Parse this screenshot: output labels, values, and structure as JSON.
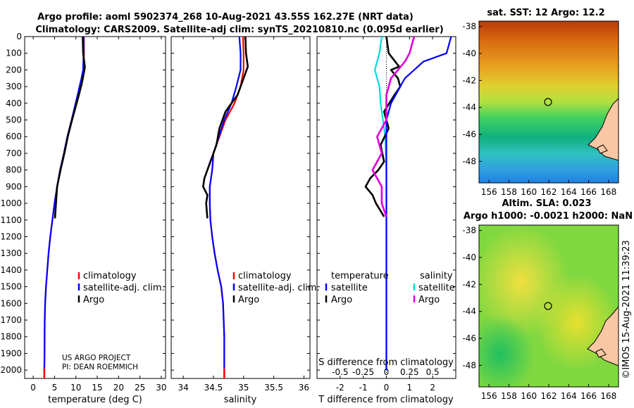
{
  "header": {
    "title_line1": "Argo profile: aoml 5902374_268 10-Aug-2021 43.55S 162.27E (NRT data)",
    "title_line2": "Climatology: CARS2009. Satellite-adj clim: synTS_20210810.nc (0.095d earlier)",
    "credit_project": "US ARGO PROJECT",
    "credit_pi": "PI: DEAN ROEMMICH",
    "timestamp": "©IMOS 15-Aug-2021 11:39:23"
  },
  "colors": {
    "climatology": "#ff0000",
    "satellite_adj": "#0000ff",
    "argo": "#000000",
    "temp_satellite": "#00dddd",
    "sal_argo": "#dd00dd",
    "land": "#f9c7a3"
  },
  "chart_data": [
    {
      "type": "line",
      "id": "temperature",
      "xlabel": "temperature (deg C)",
      "xlim": [
        -2,
        31
      ],
      "ylim": [
        2050,
        0
      ],
      "yticks": [
        0,
        100,
        200,
        300,
        400,
        500,
        600,
        700,
        800,
        900,
        1000,
        1100,
        1200,
        1300,
        1400,
        1500,
        1600,
        1700,
        1800,
        1900,
        2000
      ],
      "xticks": [
        0,
        5,
        10,
        15,
        20,
        25,
        30
      ],
      "legend": [
        "climatology",
        "satellite-adj. clim.",
        "Argo"
      ],
      "series": [
        {
          "name": "climatology",
          "color": "#ff0000",
          "x": [
            11.9,
            11.9,
            11.8,
            11.4,
            10.5,
            9.0,
            8.0,
            7.2,
            6.3,
            5.6,
            5.0,
            4.5,
            4.0,
            3.6,
            3.3,
            3.0,
            2.8,
            2.7,
            2.65,
            2.6
          ],
          "y": [
            0,
            100,
            200,
            250,
            350,
            500,
            600,
            700,
            800,
            900,
            1000,
            1100,
            1200,
            1300,
            1400,
            1500,
            1600,
            1700,
            1900,
            2050
          ]
        },
        {
          "name": "satellite-adj. clim.",
          "color": "#0000ff",
          "x": [
            11.8,
            11.8,
            11.7,
            11.3,
            10.4,
            9.0,
            8.0,
            7.2,
            6.3,
            5.6,
            5.0,
            4.5,
            4.0,
            3.6,
            3.3,
            3.0,
            2.8,
            2.7,
            2.65,
            2.6
          ],
          "y": [
            0,
            100,
            200,
            250,
            350,
            500,
            600,
            700,
            800,
            900,
            1000,
            1100,
            1200,
            1300,
            1400,
            1500,
            1600,
            1700,
            1900,
            2000
          ]
        },
        {
          "name": "Argo",
          "color": "#000000",
          "x": [
            11.6,
            11.7,
            12.1,
            12.0,
            11.4,
            10.6,
            9.1,
            8.1,
            7.3,
            6.4,
            5.6,
            5.1
          ],
          "y": [
            0,
            100,
            180,
            200,
            280,
            360,
            500,
            600,
            700,
            800,
            900,
            1090
          ]
        }
      ]
    },
    {
      "type": "line",
      "id": "salinity",
      "xlabel": "salinity",
      "xlim": [
        33.8,
        36.1
      ],
      "ylim": [
        2050,
        0
      ],
      "xticks": [
        34,
        34.5,
        35,
        35.5,
        36
      ],
      "legend": [
        "climatology",
        "satellite-adj. clim.",
        "Argo"
      ],
      "series": [
        {
          "name": "climatology",
          "color": "#ff0000",
          "x": [
            34.99,
            35.0,
            35.0,
            34.95,
            34.85,
            34.7,
            34.6,
            34.5,
            34.48,
            34.44,
            34.44,
            34.45,
            34.48,
            34.52,
            34.57,
            34.63,
            34.66,
            34.68,
            34.68
          ],
          "y": [
            0,
            100,
            200,
            300,
            400,
            500,
            600,
            700,
            800,
            900,
            1000,
            1100,
            1200,
            1300,
            1400,
            1500,
            1600,
            1800,
            2050
          ]
        },
        {
          "name": "satellite-adj. clim.",
          "color": "#0000ff",
          "x": [
            34.93,
            34.95,
            34.95,
            34.88,
            34.8,
            34.68,
            34.59,
            34.5,
            34.48,
            34.44,
            34.44,
            34.45,
            34.48,
            34.52,
            34.57,
            34.63,
            34.66,
            34.68,
            34.68
          ],
          "y": [
            0,
            100,
            200,
            300,
            400,
            500,
            600,
            700,
            800,
            900,
            1000,
            1100,
            1200,
            1300,
            1400,
            1500,
            1600,
            1800,
            2000
          ]
        },
        {
          "name": "Argo",
          "color": "#000000",
          "x": [
            35.03,
            35.04,
            35.07,
            35.0,
            34.9,
            34.7,
            34.6,
            34.55,
            34.45,
            34.35,
            34.33,
            34.4,
            34.38,
            34.4
          ],
          "y": [
            0,
            100,
            180,
            250,
            350,
            450,
            550,
            650,
            750,
            850,
            900,
            950,
            1000,
            1090
          ]
        }
      ]
    },
    {
      "type": "line",
      "id": "differences",
      "xlabel": "T difference from climatology",
      "xlabel_top": "S difference from climatology",
      "xlim": [
        -3,
        3
      ],
      "ylim": [
        2050,
        0
      ],
      "xticks": [
        -2,
        -1,
        0,
        1,
        2
      ],
      "xtick_labels": [
        "-2",
        "-1",
        "0",
        "1",
        "2"
      ],
      "s_ticks": [
        -0.5,
        -0.25,
        0,
        0.25,
        0.5
      ],
      "s_tick_labels": [
        "-0.5",
        "-0.25",
        "0",
        "0.25",
        "0.5"
      ],
      "legend_temperature_title": "temperature",
      "legend_salinity_title": "salinity",
      "legend_entries": [
        "satellite",
        "Argo",
        "satellite",
        "Argo"
      ],
      "series": [
        {
          "name": "temperature satellite",
          "color": "#00dddd",
          "x": [
            -0.2,
            -0.3,
            -0.5,
            -0.3,
            -0.25,
            -0.15,
            -0.05,
            0,
            0,
            0,
            0,
            0
          ],
          "y": [
            0,
            100,
            200,
            300,
            400,
            500,
            600,
            800,
            1000,
            1200,
            1600,
            2000
          ]
        },
        {
          "name": "temperature Argo",
          "color": "#000000",
          "x": [
            0.0,
            0.1,
            0.55,
            0.2,
            0.5,
            0.6,
            0.35,
            -0.1,
            0.1,
            -0.25,
            -0.1,
            -0.35,
            -0.7,
            -0.9,
            -0.6,
            -0.45,
            -0.1
          ],
          "y": [
            0,
            100,
            180,
            200,
            250,
            300,
            350,
            450,
            550,
            650,
            750,
            800,
            850,
            900,
            950,
            1000,
            1080
          ]
        },
        {
          "name": "salinity satellite",
          "color": "#0000ff",
          "x": [
            0.7,
            0.65,
            0.4,
            0.2,
            0.05,
            0,
            0
          ],
          "y": [
            0,
            100,
            150,
            250,
            400,
            500,
            2000
          ]
        },
        {
          "name": "salinity Argo",
          "color": "#dd00dd",
          "x": [
            0.3,
            0.25,
            0.2,
            0.05,
            0.0,
            0.0,
            -0.1,
            -0.05,
            -0.15,
            -0.05,
            -0.05,
            0.0
          ],
          "y": [
            0,
            100,
            150,
            250,
            350,
            500,
            600,
            700,
            800,
            900,
            1000,
            1080
          ]
        }
      ]
    },
    {
      "type": "heatmap",
      "id": "sst_map",
      "title": "sat. SST: 12 Argo: 12.2",
      "xticks": [
        156,
        158,
        160,
        162,
        164,
        166,
        168
      ],
      "yticks": [
        -38,
        -40,
        -42,
        -44,
        -46,
        -48
      ],
      "xlim": [
        155,
        169
      ],
      "ylim": [
        -49.6,
        -37.6
      ],
      "marker": {
        "lon": 162.27,
        "lat": -43.55
      }
    },
    {
      "type": "heatmap",
      "id": "sla_map",
      "title_line1": "Altim. SLA: 0.023",
      "title_line2": "Argo h1000: -0.0021 h2000: NaN",
      "xticks": [
        156,
        158,
        160,
        162,
        164,
        166,
        168
      ],
      "yticks": [
        -38,
        -40,
        -42,
        -44,
        -46,
        -48
      ],
      "xlim": [
        155,
        169
      ],
      "ylim": [
        -49.6,
        -37.6
      ],
      "marker": {
        "lon": 162.27,
        "lat": -43.55
      }
    }
  ]
}
